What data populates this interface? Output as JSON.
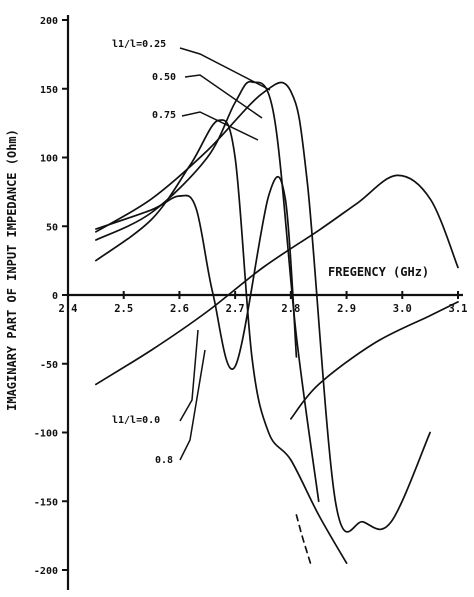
{
  "chart_data": {
    "type": "line",
    "title": "",
    "xlabel": "FREGENCY (GHz)",
    "ylabel": "IMAGINARY PART OF INPUT IMPEDANCE (Ohm)",
    "xlim": [
      2.4,
      3.1
    ],
    "ylim": [
      -200,
      200
    ],
    "grid": false,
    "legend": "none",
    "x_ticks": [
      "2.4",
      "2.5",
      "2.6",
      "2.7",
      "2.8",
      "2.9",
      "3.0",
      "3.1"
    ],
    "y_ticks": [
      "200",
      "150",
      "100",
      "50",
      "0",
      "-50",
      "-100",
      "-150",
      "-200"
    ],
    "annotations": [
      {
        "text": "l1/l=0.25",
        "series": 0
      },
      {
        "text": "0.50",
        "series": 1
      },
      {
        "text": "0.75",
        "series": 2
      },
      {
        "text": "l1/l=0.0",
        "series": 3
      },
      {
        "text": "0.8",
        "series": 4
      }
    ],
    "series": [
      {
        "x": [
          2.45,
          2.55,
          2.65,
          2.75,
          2.8,
          2.83,
          2.88,
          2.93,
          2.98,
          3.05
        ],
        "y": [
          46,
          70,
          105,
          147,
          148,
          80,
          -150,
          -165,
          -165,
          -100
        ]
      },
      {
        "x": [
          2.45,
          2.55,
          2.65,
          2.7,
          2.73,
          2.77,
          2.81,
          2.85
        ],
        "y": [
          40,
          60,
          100,
          140,
          155,
          130,
          -30,
          -150
        ]
      },
      {
        "x": [
          2.45,
          2.55,
          2.62,
          2.67,
          2.7,
          2.73,
          2.76,
          2.8,
          2.85,
          2.9
        ],
        "y": [
          25,
          55,
          95,
          127,
          100,
          -45,
          -100,
          -120,
          -160,
          -195
        ]
      },
      {
        "x": [
          2.45,
          2.55,
          2.6,
          2.63,
          2.66,
          2.7,
          2.76,
          2.79,
          2.81
        ],
        "y": [
          48,
          62,
          72,
          63,
          1,
          -52,
          72,
          70,
          -45
        ]
      },
      {
        "x": [
          2.45,
          2.55,
          2.65,
          2.75,
          2.85,
          2.92,
          2.99,
          3.05,
          3.1
        ],
        "y": [
          -65,
          -40,
          -12,
          20,
          47,
          67,
          87,
          70,
          20
        ]
      }
    ],
    "series_extra": [
      {
        "x": [
          2.8,
          2.85,
          2.95,
          3.05,
          3.1
        ],
        "y": [
          -90,
          -65,
          -35,
          -15,
          -5
        ]
      }
    ]
  }
}
